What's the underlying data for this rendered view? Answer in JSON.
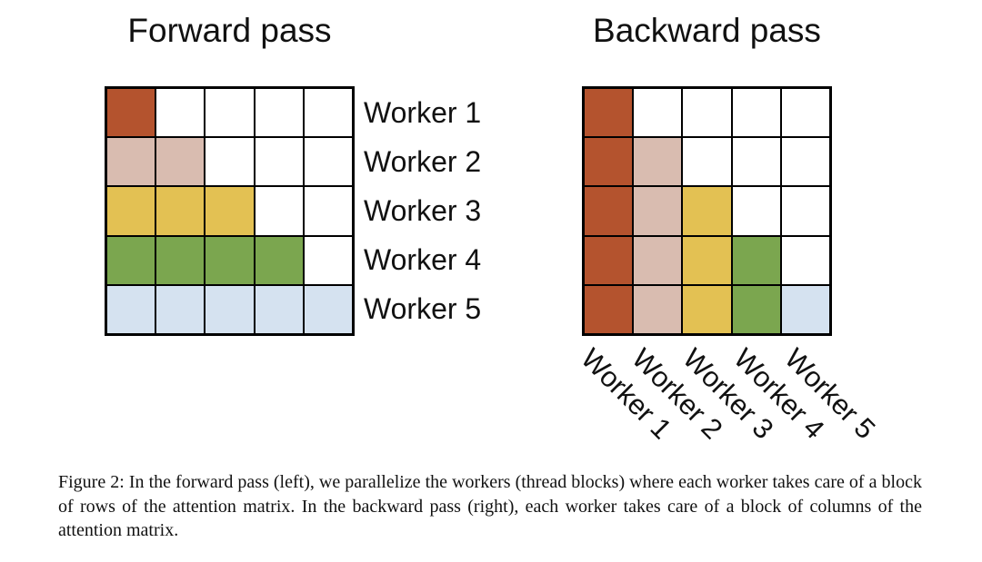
{
  "figure": {
    "forward": {
      "title": "Forward pass",
      "worker_labels": [
        "Worker 1",
        "Worker 2",
        "Worker 3",
        "Worker 4",
        "Worker 5"
      ],
      "cells": [
        [
          1,
          0,
          0,
          0,
          0
        ],
        [
          2,
          2,
          0,
          0,
          0
        ],
        [
          3,
          3,
          3,
          0,
          0
        ],
        [
          4,
          4,
          4,
          4,
          0
        ],
        [
          5,
          5,
          5,
          5,
          5
        ]
      ]
    },
    "backward": {
      "title": "Backward pass",
      "worker_labels": [
        "Worker 1",
        "Worker 2",
        "Worker 3",
        "Worker 4",
        "Worker 5"
      ],
      "cells": [
        [
          1,
          0,
          0,
          0,
          0
        ],
        [
          1,
          2,
          0,
          0,
          0
        ],
        [
          1,
          2,
          3,
          0,
          0
        ],
        [
          1,
          2,
          3,
          4,
          0
        ],
        [
          1,
          2,
          3,
          4,
          5
        ]
      ]
    },
    "palette": {
      "0": "#ffffff",
      "1": "#b4532e",
      "2": "#d9bcb0",
      "3": "#e3c153",
      "4": "#7ba64f",
      "5": "#d5e2f0"
    },
    "grid_line_color": "#000000",
    "caption": "Figure 2: In the forward pass (left), we parallelize the workers (thread blocks) where each worker takes care of a block of rows of the attention matrix. In the backward pass (right), each worker takes care of a block of columns of the attention matrix."
  }
}
